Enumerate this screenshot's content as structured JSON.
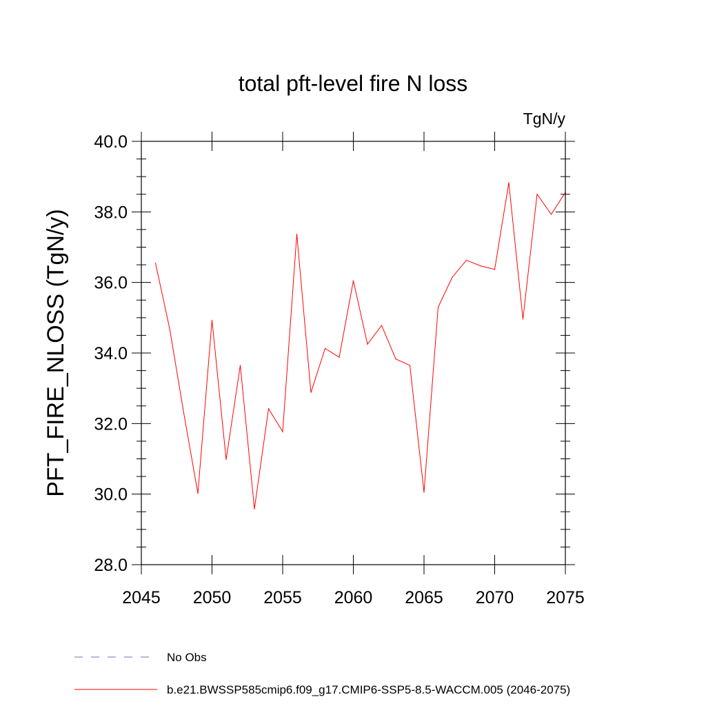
{
  "chart_data": {
    "type": "line",
    "title": "total pft-level fire N loss",
    "units_label": "TgN/y",
    "ylabel": "PFT_FIRE_NLOSS  (TgN/y)",
    "xlabel": "",
    "xlim": [
      2045,
      2075
    ],
    "ylim": [
      28.0,
      40.0
    ],
    "x_ticks": [
      2045,
      2050,
      2055,
      2060,
      2065,
      2070,
      2075
    ],
    "x_tick_labels": [
      "2045",
      "2050",
      "2055",
      "2060",
      "2065",
      "2070",
      "2075"
    ],
    "y_ticks": [
      28.0,
      30.0,
      32.0,
      34.0,
      36.0,
      38.0,
      40.0
    ],
    "y_tick_labels": [
      "28.0",
      "30.0",
      "32.0",
      "34.0",
      "36.0",
      "38.0",
      "40.0"
    ],
    "grid": false,
    "legend_position": "bottom-left",
    "legend": [
      {
        "label": "No Obs",
        "color": "#7b68b5",
        "style": "dashed"
      },
      {
        "label": "b.e21.BWSSP585cmip6.f09_g17.CMIP6-SSP5-8.5-WACCM.005 (2046-2075)",
        "color": "#ff0000",
        "style": "solid"
      }
    ],
    "series": [
      {
        "name": "b.e21.BWSSP585cmip6.f09_g17.CMIP6-SSP5-8.5-WACCM.005 (2046-2075)",
        "color": "#ff0000",
        "x": [
          2046,
          2047,
          2048,
          2049,
          2050,
          2051,
          2052,
          2053,
          2054,
          2055,
          2056,
          2057,
          2058,
          2059,
          2060,
          2061,
          2062,
          2063,
          2064,
          2065,
          2066,
          2067,
          2068,
          2069,
          2070,
          2071,
          2072,
          2073,
          2074,
          2075
        ],
        "values": [
          36.55,
          34.7,
          32.3,
          30.02,
          34.93,
          30.98,
          33.65,
          29.58,
          32.42,
          31.77,
          37.37,
          32.88,
          34.13,
          33.88,
          36.05,
          34.25,
          34.78,
          33.83,
          33.65,
          30.05,
          35.3,
          36.15,
          36.63,
          36.47,
          36.37,
          38.83,
          34.96,
          38.5,
          37.93,
          38.55
        ]
      }
    ]
  }
}
